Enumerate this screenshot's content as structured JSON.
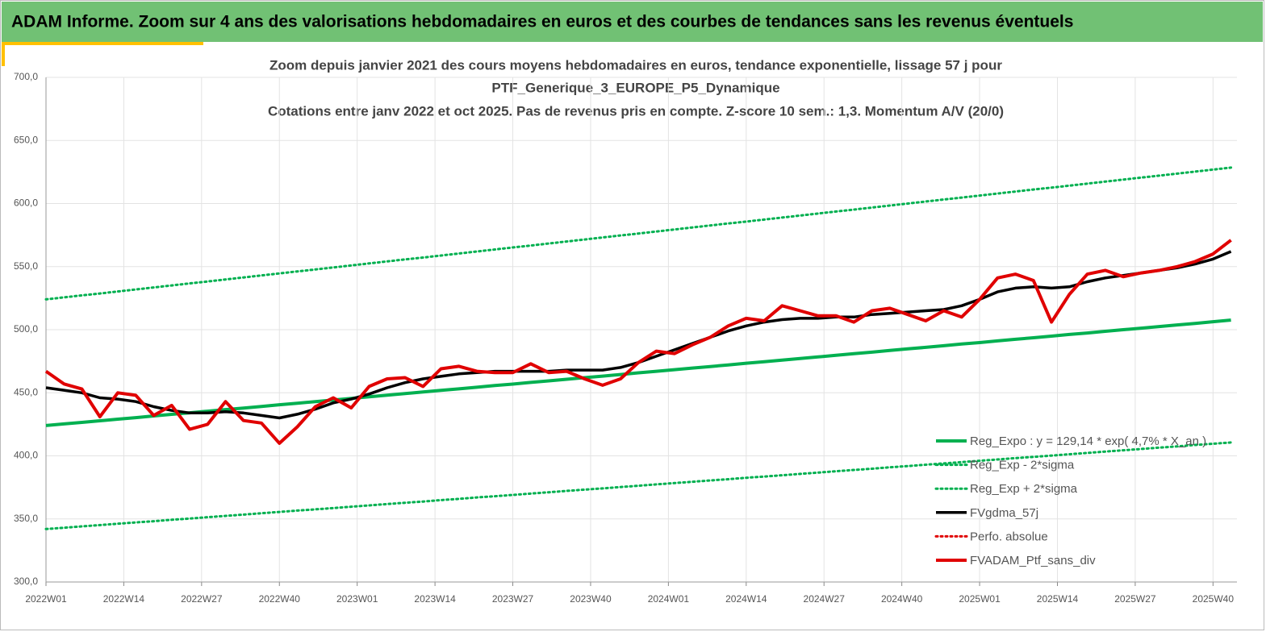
{
  "header": {
    "title": "ADAM Informe. Zoom sur 4 ans des valorisations hebdomadaires en euros et des courbes de tendances sans les revenus éventuels"
  },
  "chart_data": {
    "type": "line",
    "title": [
      "Zoom depuis janvier 2021 des cours moyens hebdomadaires  en euros, tendance exponentielle, lissage 57 j pour",
      "PTF_Generique_3_EUROPE_P5_Dynamique",
      "Cotations  entre janv 2022 et oct 2025. Pas de revenus pris en compte. Z-score 10 sem.: 1,3. Momentum A/V (20/0)"
    ],
    "x": [
      0,
      3,
      6,
      9,
      12,
      15,
      18,
      21,
      24,
      27,
      30,
      33,
      36,
      39,
      42,
      45,
      48,
      51,
      54,
      57,
      60,
      63,
      66,
      69,
      72,
      75,
      78,
      81,
      84,
      87,
      90,
      93,
      96,
      99,
      102,
      105,
      108,
      111,
      114,
      117,
      120,
      123,
      126,
      129,
      132,
      135,
      138,
      141,
      144,
      147,
      150,
      153,
      156,
      159,
      162,
      165,
      168,
      171,
      174,
      177,
      180,
      183,
      186,
      189,
      192,
      195,
      198
    ],
    "xlim": [
      0,
      199
    ],
    "xticks": [
      {
        "value": 0,
        "label": "2022W01"
      },
      {
        "value": 13,
        "label": "2022W14"
      },
      {
        "value": 26,
        "label": "2022W27"
      },
      {
        "value": 39,
        "label": "2022W40"
      },
      {
        "value": 52,
        "label": "2023W01"
      },
      {
        "value": 65,
        "label": "2023W14"
      },
      {
        "value": 78,
        "label": "2023W27"
      },
      {
        "value": 91,
        "label": "2023W40"
      },
      {
        "value": 104,
        "label": "2024W01"
      },
      {
        "value": 117,
        "label": "2024W14"
      },
      {
        "value": 130,
        "label": "2024W27"
      },
      {
        "value": 143,
        "label": "2024W40"
      },
      {
        "value": 156,
        "label": "2025W01"
      },
      {
        "value": 169,
        "label": "2025W14"
      },
      {
        "value": 182,
        "label": "2025W27"
      },
      {
        "value": 195,
        "label": "2025W40"
      }
    ],
    "ylim": [
      300,
      700
    ],
    "yticks": [
      {
        "value": 300,
        "label": "300,0"
      },
      {
        "value": 350,
        "label": "350,0"
      },
      {
        "value": 400,
        "label": "400,0"
      },
      {
        "value": 450,
        "label": "450,0"
      },
      {
        "value": 500,
        "label": "500,0"
      },
      {
        "value": 550,
        "label": "550,0"
      },
      {
        "value": 600,
        "label": "600,0"
      },
      {
        "value": 650,
        "label": "650,0"
      },
      {
        "value": 700,
        "label": "700,0"
      }
    ],
    "grid": true,
    "legend": "lower right",
    "series": [
      {
        "name": "Reg_Expo : y = 129,14 * exp( 4,7% *  X_an )",
        "color": "#00b050",
        "line_style": "solid",
        "values": [
          424.0,
          425.3,
          426.5,
          427.8,
          429.1,
          430.3,
          431.6,
          432.9,
          434.1,
          435.4,
          436.7,
          437.9,
          439.2,
          440.5,
          441.7,
          443.0,
          444.3,
          445.5,
          446.8,
          448.1,
          449.3,
          450.6,
          451.9,
          453.1,
          454.4,
          455.7,
          456.9,
          458.2,
          459.4,
          460.7,
          462.0,
          463.2,
          464.5,
          465.8,
          467.0,
          468.3,
          469.6,
          470.8,
          472.1,
          473.4,
          474.6,
          475.9,
          477.2,
          478.4,
          479.7,
          481.0,
          482.2,
          483.5,
          484.8,
          486.0,
          487.3,
          488.6,
          489.8,
          491.1,
          492.4,
          493.6,
          494.9,
          496.2,
          497.4,
          498.7,
          500.0,
          501.2,
          502.5,
          503.8,
          505.0,
          506.3,
          507.6
        ]
      },
      {
        "name": "Reg_Exp - 2*sigma",
        "color": "#00b050",
        "line_style": "dotted",
        "values": [
          342.0,
          343.0,
          344.1,
          345.1,
          346.2,
          347.2,
          348.2,
          349.3,
          350.3,
          351.4,
          352.4,
          353.4,
          354.5,
          355.5,
          356.6,
          357.6,
          358.6,
          359.7,
          360.7,
          361.8,
          362.8,
          363.8,
          364.9,
          365.9,
          367.0,
          368.0,
          369.0,
          370.1,
          371.1,
          372.2,
          373.2,
          374.2,
          375.3,
          376.3,
          377.4,
          378.4,
          379.4,
          380.5,
          381.5,
          382.6,
          383.6,
          384.6,
          385.7,
          386.7,
          387.8,
          388.8,
          389.8,
          390.9,
          391.9,
          393.0,
          394.0,
          395.0,
          396.1,
          397.1,
          398.2,
          399.2,
          400.2,
          401.3,
          402.3,
          403.4,
          404.4,
          405.4,
          406.5,
          407.5,
          408.6,
          409.6,
          410.6
        ]
      },
      {
        "name": "Reg_Exp + 2*sigma",
        "color": "#00b050",
        "line_style": "dotted",
        "values": [
          524.0,
          525.6,
          527.2,
          528.7,
          530.3,
          531.9,
          533.5,
          535.1,
          536.7,
          538.2,
          539.8,
          541.4,
          543.0,
          544.6,
          546.2,
          547.7,
          549.3,
          550.9,
          552.5,
          554.1,
          555.7,
          557.2,
          558.8,
          560.4,
          562.0,
          563.6,
          565.2,
          566.7,
          568.3,
          569.9,
          571.5,
          573.1,
          574.7,
          576.2,
          577.8,
          579.4,
          581.0,
          582.6,
          584.2,
          585.7,
          587.3,
          588.9,
          590.5,
          592.1,
          593.7,
          595.2,
          596.8,
          598.4,
          600.0,
          601.6,
          603.2,
          604.7,
          606.3,
          607.9,
          609.5,
          611.1,
          612.6,
          614.2,
          615.8,
          617.4,
          619.0,
          620.6,
          622.1,
          623.7,
          625.3,
          626.9,
          628.5
        ]
      },
      {
        "name": "FVgdma_57j",
        "color": "#000000",
        "line_style": "solid",
        "values": [
          454,
          452,
          450,
          446,
          445,
          443,
          439,
          436,
          434,
          434,
          435,
          434,
          432,
          430,
          433,
          437,
          442,
          445,
          449,
          454,
          458,
          461,
          463,
          465,
          466,
          467,
          467,
          467,
          467,
          468,
          468,
          468,
          470,
          474,
          479,
          484,
          489,
          494,
          499,
          503,
          506,
          508,
          509,
          509,
          510,
          510,
          512,
          513,
          514,
          515,
          516,
          519,
          524,
          530,
          533,
          534,
          533,
          534,
          538,
          541,
          543,
          545,
          547,
          549,
          552,
          556,
          562
        ]
      },
      {
        "name": "Perfo. absolue",
        "color": "#e00000",
        "line_style": "dotted",
        "values": [
          null,
          null,
          null,
          null,
          null,
          null,
          null,
          null,
          null,
          null,
          null,
          null,
          null,
          null,
          null,
          null,
          null,
          null,
          null,
          null,
          null,
          null,
          null,
          null,
          null,
          null,
          null,
          null,
          null,
          null,
          null,
          null,
          null,
          null,
          null,
          null,
          null,
          null,
          null,
          null,
          null,
          null,
          null,
          null,
          null,
          null,
          null,
          null,
          null,
          null,
          null,
          null,
          null,
          null,
          null,
          null,
          null,
          null,
          null,
          null,
          null,
          null,
          null,
          null,
          null,
          null,
          null
        ]
      },
      {
        "name": "FVADAM_Ptf_sans_div",
        "color": "#e00000",
        "line_style": "solid",
        "values": [
          467,
          457,
          453,
          431,
          450,
          448,
          432,
          440,
          421,
          425,
          443,
          428,
          426,
          410,
          423,
          439,
          446,
          438,
          455,
          461,
          462,
          455,
          469,
          471,
          467,
          466,
          466,
          473,
          466,
          467,
          461,
          456,
          461,
          474,
          483,
          481,
          488,
          494,
          503,
          509,
          507,
          519,
          515,
          511,
          511,
          506,
          515,
          517,
          512,
          507,
          515,
          510,
          524,
          541,
          544,
          539,
          506,
          528,
          544,
          547,
          542,
          545,
          547,
          550,
          554,
          560,
          571
        ]
      }
    ]
  }
}
